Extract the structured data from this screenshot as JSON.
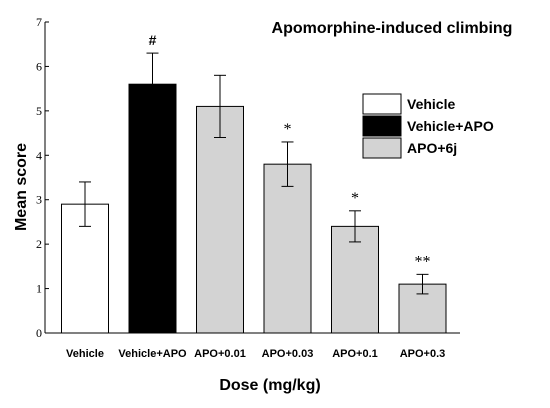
{
  "chart_data": {
    "type": "bar",
    "title": "Apomorphine-induced climbing",
    "xlabel": "Dose (mg/kg)",
    "ylabel": "Mean score",
    "ylim": [
      0,
      7
    ],
    "yticks": [
      0,
      1,
      2,
      3,
      4,
      5,
      6,
      7
    ],
    "grid": false,
    "legend_position": "right",
    "categories": [
      "Vehicle",
      "Vehicle+APO",
      "APO+0.01",
      "APO+0.03",
      "APO+0.1",
      "APO+0.3"
    ],
    "values": [
      2.9,
      5.6,
      5.1,
      3.8,
      2.4,
      1.1
    ],
    "errors": [
      0.5,
      0.7,
      0.7,
      0.5,
      0.35,
      0.22
    ],
    "annotations": [
      "",
      "#",
      "",
      "*",
      "*",
      "**"
    ],
    "bar_groups": [
      "vehicle",
      "vehicle_apo",
      "apo_6j",
      "apo_6j",
      "apo_6j",
      "apo_6j"
    ],
    "legend": [
      {
        "key": "vehicle",
        "label": "Vehicle",
        "color": "#ffffff"
      },
      {
        "key": "vehicle_apo",
        "label": "Vehicle+APO",
        "color": "#000000"
      },
      {
        "key": "apo_6j",
        "label": "APO+6j",
        "color": "#d3d3d3"
      }
    ]
  }
}
